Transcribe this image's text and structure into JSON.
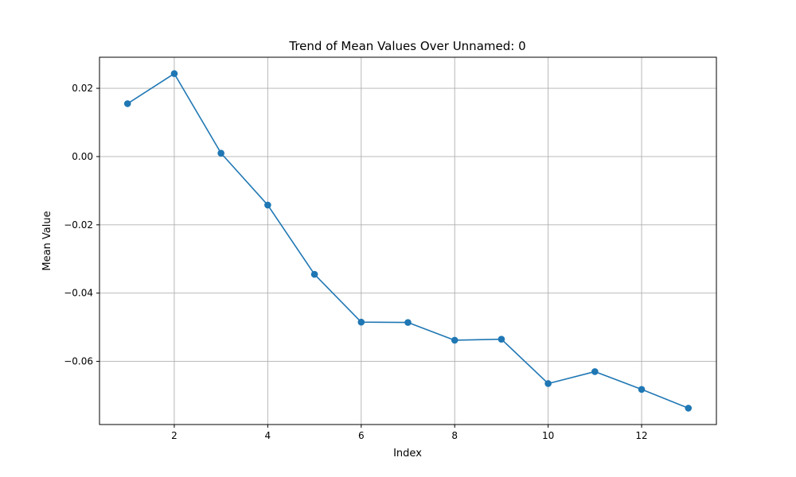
{
  "chart_data": {
    "type": "line",
    "title": "Trend of Mean Values Over Unnamed: 0",
    "xlabel": "Index",
    "ylabel": "Mean Value",
    "x": [
      1,
      2,
      3,
      4,
      5,
      6,
      7,
      8,
      9,
      10,
      11,
      12,
      13
    ],
    "series": [
      {
        "values": [
          0.0155,
          0.0243,
          0.001,
          -0.0142,
          -0.0345,
          -0.0485,
          -0.0486,
          -0.0538,
          -0.0535,
          -0.0665,
          -0.063,
          -0.0682,
          -0.0737
        ]
      }
    ],
    "xlim": [
      0.4,
      13.6
    ],
    "ylim": [
      -0.0785,
      0.0291
    ],
    "xticks": [
      2,
      4,
      6,
      8,
      10,
      12
    ],
    "xtick_labels": [
      "2",
      "4",
      "6",
      "8",
      "10",
      "12"
    ],
    "yticks": [
      0.02,
      0.0,
      -0.02,
      -0.04,
      -0.06
    ],
    "ytick_labels": [
      "0.02",
      "0.00",
      "−0.02",
      "−0.04",
      "−0.06"
    ],
    "grid": true,
    "line_color": "#1f77b4",
    "marker": "circle"
  }
}
